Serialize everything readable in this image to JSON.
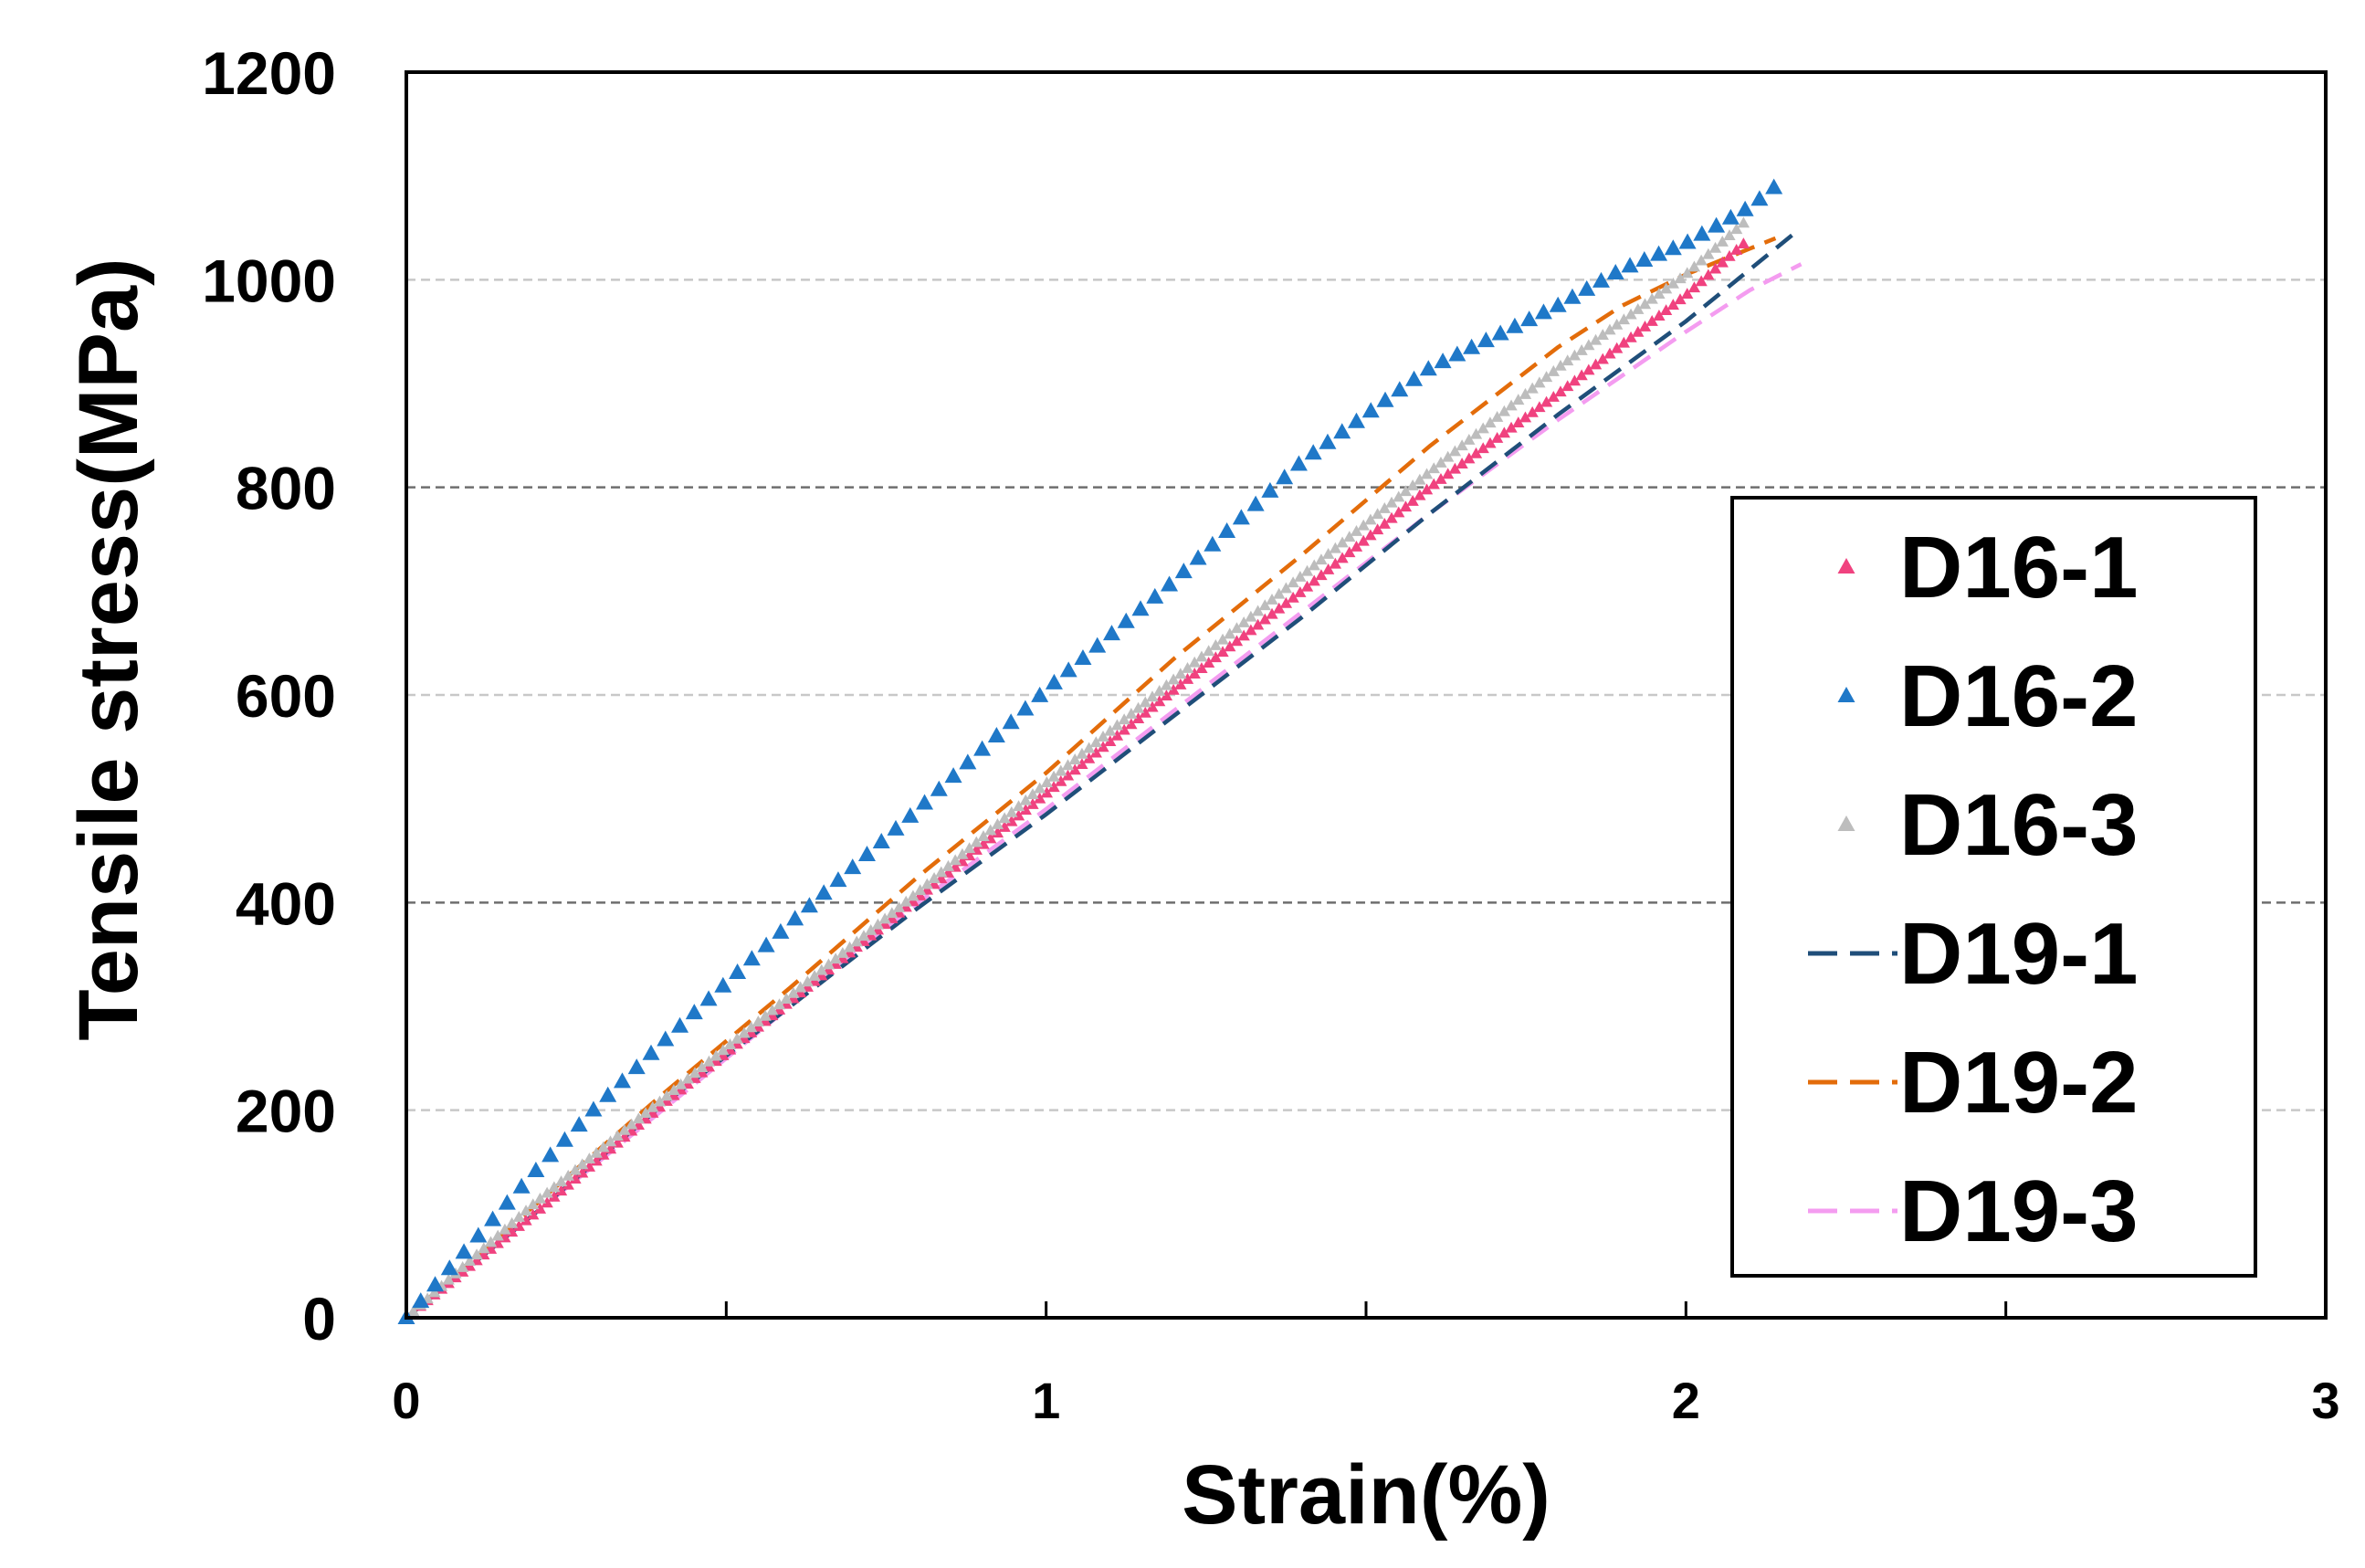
{
  "chart_data": {
    "type": "line",
    "title": "",
    "xlabel": "Strain(%)",
    "ylabel": "Tensile stress(MPa)",
    "xlim": [
      0,
      3
    ],
    "ylim": [
      0,
      1200
    ],
    "xticks": [
      0,
      1,
      2,
      3
    ],
    "xtick_labels": [
      "0",
      "1",
      "2",
      "3"
    ],
    "yticks": [
      0,
      200,
      400,
      600,
      800,
      1000,
      1200
    ],
    "ytick_labels": [
      "0",
      "200",
      "400",
      "600",
      "800",
      "1000",
      "1200"
    ],
    "grid": "horizontal dashed",
    "legend_position": "right",
    "series": [
      {
        "name": "D16-1",
        "style": "triangle-markers",
        "color": "#f0427f",
        "x": [
          0,
          0.1,
          0.2,
          0.4,
          0.6,
          0.8,
          1.0,
          1.2,
          1.4,
          1.6,
          1.8,
          2.0,
          2.1
        ],
        "y": [
          0,
          50,
          100,
          205,
          305,
          405,
          505,
          605,
          700,
          800,
          890,
          985,
          1040
        ]
      },
      {
        "name": "D16-2",
        "style": "triangle-markers",
        "color": "#1f78c8",
        "x": [
          0,
          0.1,
          0.2,
          0.3,
          0.4,
          0.6,
          0.8,
          1.0,
          1.2,
          1.4,
          1.6,
          1.8,
          1.9,
          2.0,
          2.1,
          2.15
        ],
        "y": [
          0,
          70,
          140,
          205,
          265,
          380,
          490,
          605,
          710,
          825,
          915,
          975,
          1010,
          1035,
          1070,
          1095
        ]
      },
      {
        "name": "D16-3",
        "style": "triangle-markers",
        "color": "#bdbdbd",
        "x": [
          0,
          0.1,
          0.2,
          0.4,
          0.6,
          0.8,
          1.0,
          1.2,
          1.4,
          1.6,
          1.8,
          2.0,
          2.1
        ],
        "y": [
          0,
          55,
          110,
          210,
          310,
          410,
          515,
          615,
          715,
          815,
          915,
          1005,
          1060
        ]
      },
      {
        "name": "D19-1",
        "style": "dash",
        "color": "#1f4e79",
        "x": [
          0,
          0.2,
          0.4,
          0.6,
          0.8,
          1.0,
          1.2,
          1.4,
          1.6,
          1.8,
          2.0,
          2.1,
          2.17
        ],
        "y": [
          0,
          100,
          205,
          300,
          395,
          485,
          580,
          675,
          775,
          870,
          960,
          1010,
          1045
        ]
      },
      {
        "name": "D19-2",
        "style": "dash",
        "color": "#e36c0a",
        "x": [
          0,
          0.2,
          0.4,
          0.6,
          0.8,
          1.0,
          1.2,
          1.4,
          1.6,
          1.8,
          1.9,
          2.0,
          2.1,
          2.14
        ],
        "y": [
          0,
          108,
          215,
          318,
          425,
          525,
          635,
          735,
          840,
          935,
          975,
          1005,
          1030,
          1040
        ]
      },
      {
        "name": "D19-3",
        "style": "dash",
        "color": "#f49cf0",
        "x": [
          0,
          0.2,
          0.4,
          0.6,
          0.8,
          1.0,
          1.2,
          1.4,
          1.6,
          1.8,
          2.0,
          2.1,
          2.18
        ],
        "y": [
          0,
          100,
          200,
          300,
          400,
          490,
          585,
          680,
          775,
          865,
          950,
          990,
          1015
        ]
      }
    ]
  }
}
